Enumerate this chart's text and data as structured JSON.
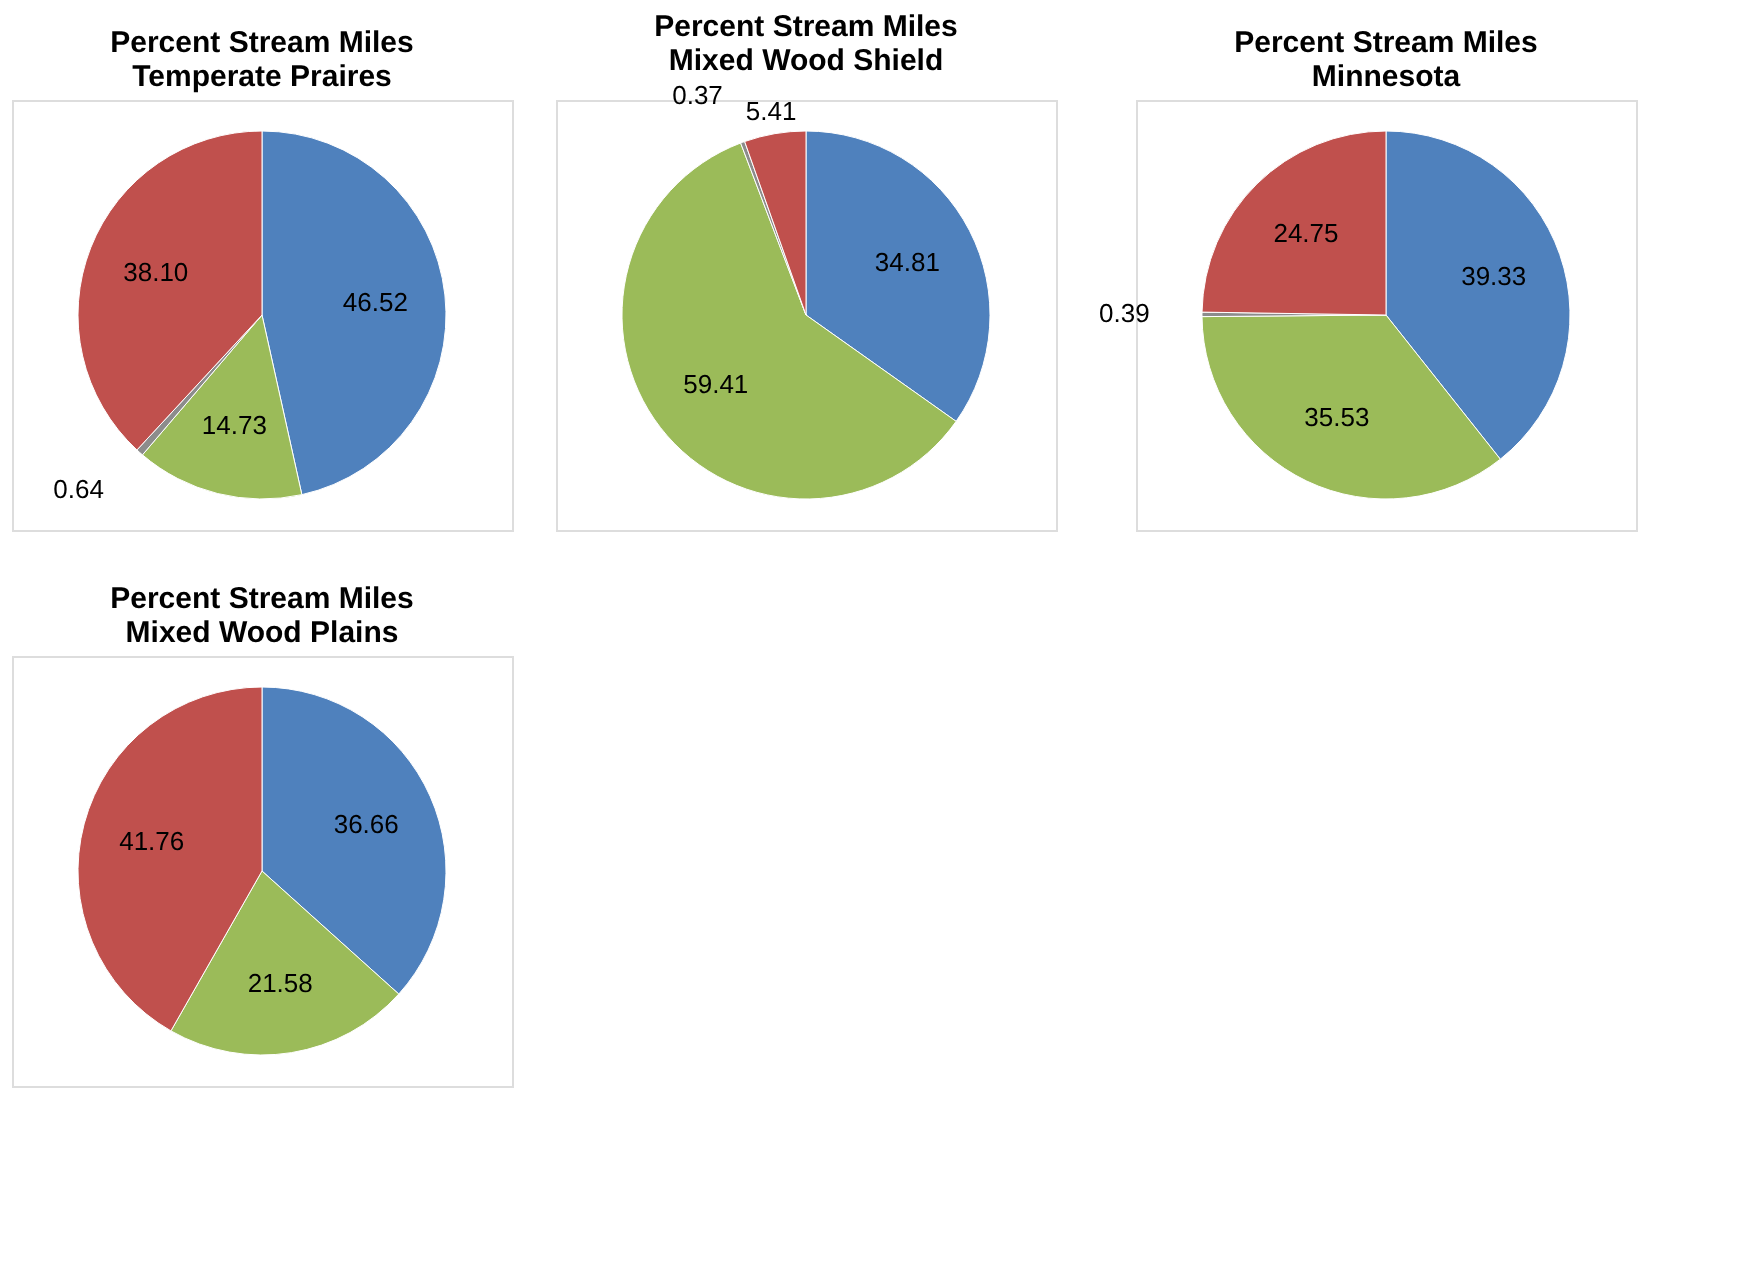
{
  "chart_data": [
    {
      "type": "pie",
      "title": "Percent Stream Miles\nTemperate Praires",
      "categories": [
        null,
        null,
        null,
        null
      ],
      "values": [
        46.52,
        14.73,
        0.64,
        38.1
      ],
      "value_labels": [
        "46.52",
        "14.73",
        "0.64",
        "38.10"
      ],
      "colors": [
        "#4f81bd",
        "#9bbb59",
        "#8c8c8c",
        "#c0504d"
      ],
      "legend": false
    },
    {
      "type": "pie",
      "title": "Percent Stream Miles\nMixed Wood Shield",
      "categories": [
        null,
        null,
        null,
        null
      ],
      "values": [
        34.81,
        59.41,
        0.37,
        5.41
      ],
      "value_labels": [
        "34.81",
        "59.41",
        "0.37",
        "5.41"
      ],
      "colors": [
        "#4f81bd",
        "#9bbb59",
        "#8c8c8c",
        "#c0504d"
      ],
      "legend": false
    },
    {
      "type": "pie",
      "title": "Percent Stream Miles\nMinnesota",
      "categories": [
        null,
        null,
        null,
        null
      ],
      "values": [
        39.33,
        35.53,
        0.39,
        24.75
      ],
      "value_labels": [
        "39.33",
        "35.53",
        "0.39",
        "24.75"
      ],
      "colors": [
        "#4f81bd",
        "#9bbb59",
        "#8c8c8c",
        "#c0504d"
      ],
      "legend": false
    },
    {
      "type": "pie",
      "title": "Percent Stream Miles\nMixed Wood Plains",
      "categories": [
        null,
        null,
        null
      ],
      "values": [
        36.66,
        21.58,
        41.76
      ],
      "value_labels": [
        "36.66",
        "21.58",
        "41.76"
      ],
      "colors": [
        "#4f81bd",
        "#9bbb59",
        "#c0504d"
      ],
      "legend": false
    }
  ]
}
